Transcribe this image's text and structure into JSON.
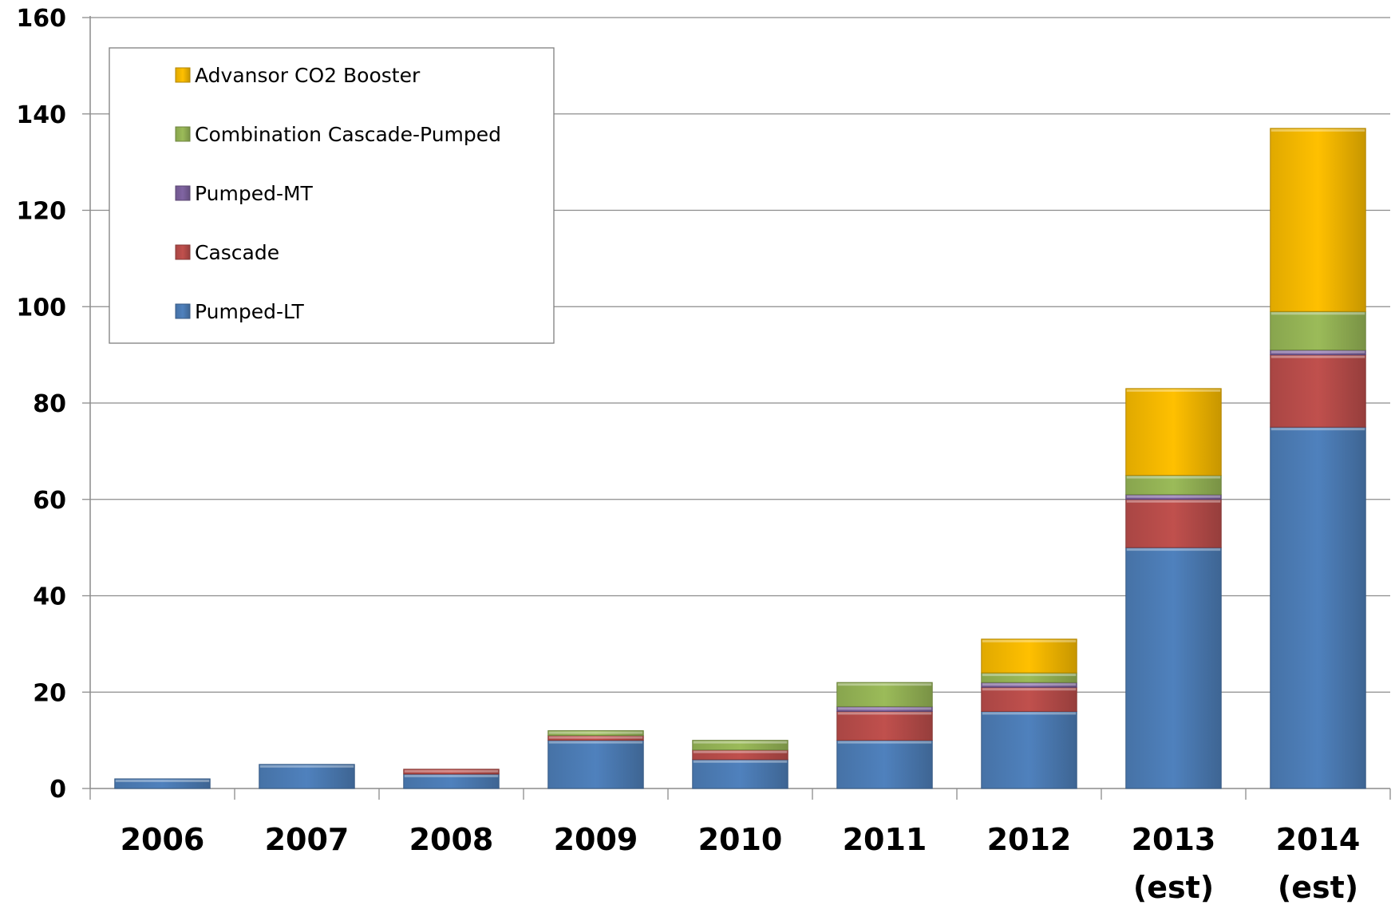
{
  "chart_data": {
    "type": "bar",
    "stacked": true,
    "title": "",
    "xlabel": "",
    "ylabel": "",
    "ylim": [
      0,
      160
    ],
    "yticks": [
      0,
      20,
      40,
      60,
      80,
      100,
      120,
      140,
      160
    ],
    "grid": true,
    "legend_position": "top-left",
    "categories": [
      [
        "2006"
      ],
      [
        "2007"
      ],
      [
        "2008"
      ],
      [
        "2009"
      ],
      [
        "2010"
      ],
      [
        "2011"
      ],
      [
        "2012"
      ],
      [
        "2013",
        "(est)"
      ],
      [
        "2014",
        "(est)"
      ]
    ],
    "series": [
      {
        "name": "Pumped-LT",
        "color": "#4F81BD",
        "values": [
          2,
          5,
          3,
          10,
          6,
          10,
          16,
          50,
          75
        ]
      },
      {
        "name": "Cascade",
        "color": "#C0504D",
        "values": [
          0,
          0,
          1,
          1,
          2,
          6,
          5,
          10,
          15
        ]
      },
      {
        "name": "Pumped-MT",
        "color": "#8064A2",
        "values": [
          0,
          0,
          0,
          0,
          0,
          1,
          1,
          1,
          1
        ]
      },
      {
        "name": "Combination Cascade-Pumped",
        "color": "#9BBB59",
        "values": [
          0,
          0,
          0,
          1,
          2,
          5,
          2,
          4,
          8
        ]
      },
      {
        "name": "Advansor CO2 Booster",
        "color": "#FFC000",
        "values": [
          0,
          0,
          0,
          0,
          0,
          0,
          7,
          18,
          38
        ]
      }
    ],
    "legend_order": [
      "Advansor CO2 Booster",
      "Combination Cascade-Pumped",
      "Pumped-MT",
      "Cascade",
      "Pumped-LT"
    ]
  }
}
